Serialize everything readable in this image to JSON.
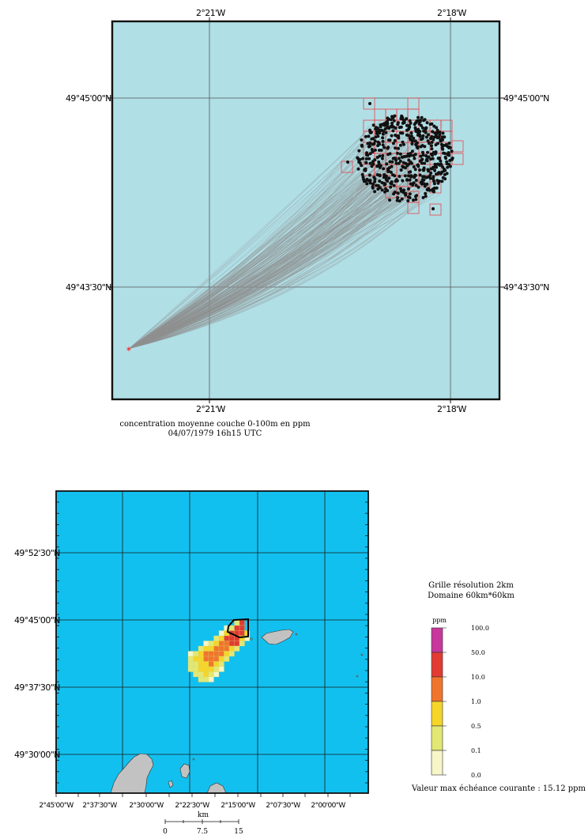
{
  "top_map": {
    "lon_labels": [
      "2°21'W",
      "2°18'W"
    ],
    "lat_labels": [
      "49°45'00\"N",
      "49°43'30\"N"
    ],
    "caption_line1": "concentration moyenne couche 0-100m en ppm",
    "caption_line2": "04/07/1979 16h15 UTC",
    "colors": {
      "sea": "#b0dfe6",
      "grid_cells": "#e8454a",
      "particles": "#111111",
      "trajectories": "#8e8e8e",
      "source": "#ff2a2a"
    }
  },
  "bottom_map": {
    "lat_labels": [
      "49°52'30\"N",
      "49°45'00\"N",
      "49°37'30\"N",
      "49°30'00\"N"
    ],
    "lon_labels": [
      "2°45'00\"W",
      "2°37'30\"W",
      "2°30'00\"W",
      "2°22'30\"W",
      "2°15'00\"W",
      "2°07'30\"W",
      "2°00'00\"W"
    ],
    "scale_unit": "km",
    "scale_ticks": [
      "0",
      "7.5",
      "15"
    ],
    "colors": {
      "sea": "#12c0ef",
      "land": "#c2c2c2"
    }
  },
  "legend": {
    "line1": "Grille résolution 2km",
    "line2": "Domaine 60km*60km",
    "unit": "ppm",
    "classes": [
      {
        "value": "100.0",
        "color": "#c8379b"
      },
      {
        "value": "50.0",
        "color": "#e23b33"
      },
      {
        "value": "10.0",
        "color": "#f0752c"
      },
      {
        "value": "1.0",
        "color": "#f5d52a"
      },
      {
        "value": "0.5",
        "color": "#e3e774"
      },
      {
        "value": "0.1",
        "color": "#f6f6c8"
      },
      {
        "value": "0.0",
        "color": "#f6f6c8"
      }
    ],
    "max_text": "Valeur max échéance courante : 15.12 ppm"
  }
}
